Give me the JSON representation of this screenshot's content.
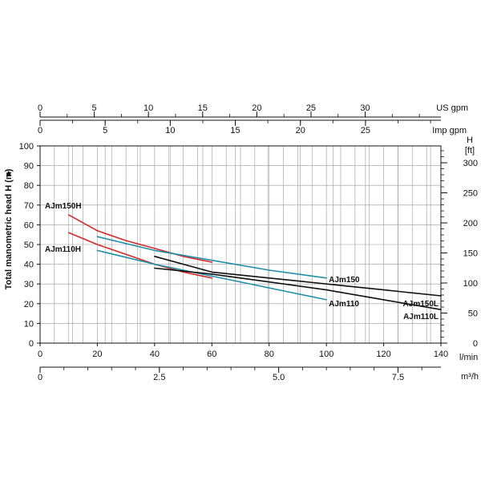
{
  "chart_data": {
    "type": "line",
    "xlabel": "l/min",
    "ylabel": "Total manometric head H (m)",
    "ylabel_marker": "►",
    "xlim": [
      0,
      140
    ],
    "ylim": [
      0,
      100
    ],
    "x_ticks": [
      "0",
      "20",
      "40",
      "60",
      "80",
      "100",
      "120",
      "140"
    ],
    "y_ticks": [
      "0",
      "10",
      "20",
      "30",
      "40",
      "50",
      "60",
      "70",
      "80",
      "90",
      "100"
    ],
    "grid": true,
    "secondary_axes": {
      "us_gpm": {
        "label": "US gpm",
        "ticks": [
          {
            "value": 0,
            "label": "0"
          },
          {
            "value": 5,
            "label": "5"
          },
          {
            "value": 10,
            "label": "10"
          },
          {
            "value": 15,
            "label": "15"
          },
          {
            "value": 20,
            "label": "20"
          },
          {
            "value": 25,
            "label": "25"
          },
          {
            "value": 30,
            "label": "30"
          }
        ],
        "lpm_per_unit": 3.785,
        "minor_step": 2.5
      },
      "imp_gpm": {
        "label": "Imp gpm",
        "ticks": [
          {
            "value": 0,
            "label": "0"
          },
          {
            "value": 5,
            "label": "5"
          },
          {
            "value": 10,
            "label": "10"
          },
          {
            "value": 15,
            "label": "15"
          },
          {
            "value": 20,
            "label": "20"
          },
          {
            "value": 25,
            "label": "25"
          }
        ],
        "lpm_per_unit": 4.546,
        "minor_step": 2.5
      },
      "feet": {
        "label_h": "H",
        "label_unit": "[ft]",
        "ticks": [
          {
            "value": 0,
            "label": "0"
          },
          {
            "value": 50,
            "label": "50"
          },
          {
            "value": 100,
            "label": "100"
          },
          {
            "value": 150,
            "label": "150"
          },
          {
            "value": 200,
            "label": "200"
          },
          {
            "value": 250,
            "label": "250"
          },
          {
            "value": 300,
            "label": "300"
          }
        ],
        "m_per_unit": 0.3048,
        "minor_step": 10
      },
      "m3h": {
        "label": "m³/h",
        "ticks": [
          {
            "value": 0,
            "label": "0"
          },
          {
            "value": 2.5,
            "label": "2.5"
          },
          {
            "value": 5,
            "label": "5.0"
          },
          {
            "value": 7.5,
            "label": "7.5"
          }
        ],
        "lpm_per_unit": 16.6667,
        "minor_step": 0.5
      }
    },
    "series": [
      {
        "name": "AJm150H",
        "color": "#d42a2a",
        "x": [
          10,
          20,
          30,
          40,
          50,
          60
        ],
        "y": [
          65,
          57,
          52,
          48,
          44,
          41
        ]
      },
      {
        "name": "AJm110H",
        "color": "#d42a2a",
        "x": [
          10,
          20,
          30,
          40,
          50,
          60
        ],
        "y": [
          56,
          50,
          45,
          40,
          36,
          33
        ]
      },
      {
        "name": "AJm150",
        "color": "#1e8fa8",
        "x": [
          20,
          40,
          60,
          80,
          100
        ],
        "y": [
          54,
          47,
          42,
          37,
          33
        ]
      },
      {
        "name": "AJm110",
        "color": "#1e8fa8",
        "x": [
          20,
          40,
          60,
          80,
          100
        ],
        "y": [
          47,
          40,
          34,
          28,
          22
        ]
      },
      {
        "name": "AJm150L",
        "color": "#111111",
        "x": [
          40,
          60,
          80,
          100,
          120,
          140
        ],
        "y": [
          44,
          36,
          33,
          30,
          27,
          24
        ]
      },
      {
        "name": "AJm110L",
        "color": "#111111",
        "x": [
          40,
          60,
          80,
          100,
          120,
          140
        ],
        "y": [
          38,
          35,
          31,
          27,
          22,
          17
        ]
      }
    ]
  }
}
